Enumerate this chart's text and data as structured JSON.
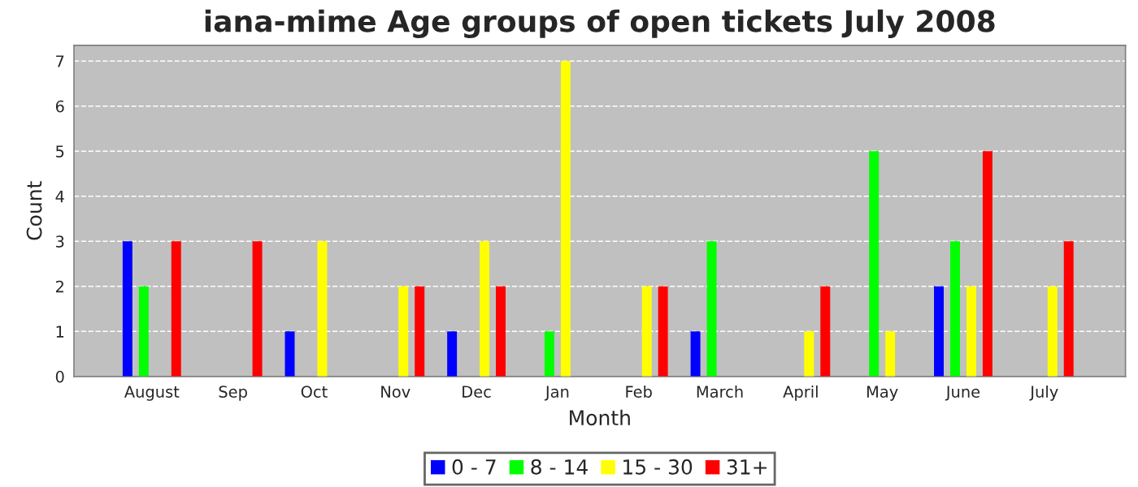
{
  "chart_data": {
    "type": "bar",
    "title": "iana-mime Age groups of open tickets July 2008",
    "xlabel": "Month",
    "ylabel": "Count",
    "categories": [
      "August",
      "Sep",
      "Oct",
      "Nov",
      "Dec",
      "Jan",
      "Feb",
      "March",
      "April",
      "May",
      "June",
      "July"
    ],
    "series": [
      {
        "name": "0 - 7",
        "color": "#0000ff",
        "values": [
          3,
          0,
          1,
          0,
          1,
          0,
          0,
          1,
          0,
          0,
          2,
          0
        ]
      },
      {
        "name": "8 - 14",
        "color": "#00ff00",
        "values": [
          2,
          0,
          0,
          0,
          0,
          1,
          0,
          3,
          0,
          5,
          3,
          0
        ]
      },
      {
        "name": "15 - 30",
        "color": "#ffff00",
        "values": [
          0,
          0,
          3,
          2,
          3,
          7,
          2,
          0,
          1,
          1,
          2,
          2
        ]
      },
      {
        "name": "31+",
        "color": "#ff0000",
        "values": [
          3,
          3,
          0,
          2,
          2,
          0,
          2,
          0,
          2,
          0,
          5,
          3
        ]
      }
    ],
    "ylim": [
      0,
      7.35
    ],
    "yticks": [
      0,
      1,
      2,
      3,
      4,
      5,
      6,
      7
    ],
    "grid": true,
    "legend": "bottom"
  }
}
